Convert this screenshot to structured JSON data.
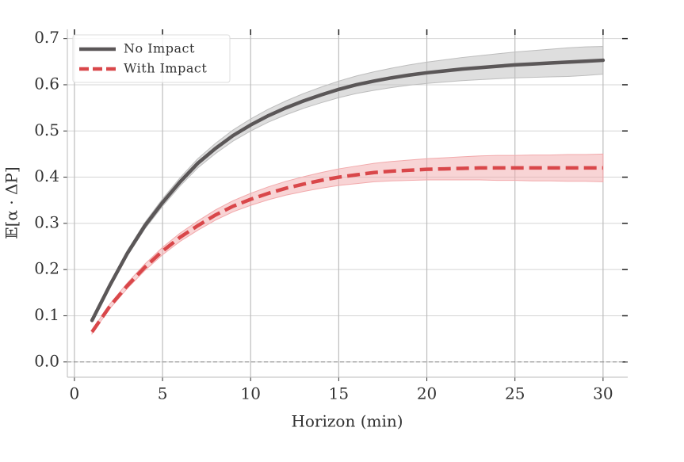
{
  "chart_data": {
    "type": "line",
    "x_label": "Horizon (min)",
    "y_label": "𝔼[α · ΔP]",
    "x": [
      1,
      2,
      3,
      4,
      5,
      6,
      7,
      8,
      9,
      10,
      11,
      12,
      13,
      14,
      15,
      16,
      17,
      18,
      19,
      20,
      21,
      22,
      23,
      24,
      25,
      26,
      27,
      28,
      29,
      30
    ],
    "series": [
      {
        "name": "No Impact",
        "color": "#5b5758",
        "band_color": "#bdbdbd",
        "dash": false,
        "values": [
          0.09,
          0.165,
          0.235,
          0.295,
          0.345,
          0.39,
          0.43,
          0.462,
          0.49,
          0.513,
          0.533,
          0.55,
          0.565,
          0.578,
          0.59,
          0.6,
          0.608,
          0.615,
          0.621,
          0.626,
          0.63,
          0.634,
          0.637,
          0.64,
          0.643,
          0.645,
          0.647,
          0.649,
          0.651,
          0.653
        ],
        "lower": [
          0.086,
          0.16,
          0.229,
          0.288,
          0.337,
          0.381,
          0.42,
          0.451,
          0.478,
          0.5,
          0.519,
          0.535,
          0.549,
          0.561,
          0.572,
          0.581,
          0.588,
          0.594,
          0.599,
          0.603,
          0.606,
          0.609,
          0.611,
          0.613,
          0.615,
          0.616,
          0.617,
          0.618,
          0.62,
          0.623
        ],
        "upper": [
          0.094,
          0.17,
          0.241,
          0.302,
          0.353,
          0.399,
          0.44,
          0.473,
          0.502,
          0.526,
          0.547,
          0.565,
          0.581,
          0.595,
          0.608,
          0.619,
          0.628,
          0.636,
          0.643,
          0.649,
          0.654,
          0.659,
          0.663,
          0.667,
          0.671,
          0.674,
          0.677,
          0.68,
          0.682,
          0.683
        ]
      },
      {
        "name": "With Impact",
        "color": "#d9474a",
        "band_color": "#f2a9ab",
        "dash": true,
        "values": [
          0.065,
          0.12,
          0.165,
          0.205,
          0.24,
          0.27,
          0.295,
          0.318,
          0.337,
          0.352,
          0.365,
          0.376,
          0.385,
          0.393,
          0.4,
          0.405,
          0.41,
          0.413,
          0.415,
          0.417,
          0.418,
          0.419,
          0.42,
          0.42,
          0.42,
          0.42,
          0.42,
          0.42,
          0.42,
          0.42
        ],
        "lower": [
          0.061,
          0.115,
          0.159,
          0.198,
          0.232,
          0.261,
          0.285,
          0.307,
          0.325,
          0.339,
          0.351,
          0.361,
          0.369,
          0.376,
          0.382,
          0.386,
          0.39,
          0.392,
          0.393,
          0.394,
          0.394,
          0.394,
          0.394,
          0.393,
          0.393,
          0.392,
          0.392,
          0.391,
          0.391,
          0.39
        ],
        "upper": [
          0.069,
          0.125,
          0.171,
          0.212,
          0.248,
          0.279,
          0.305,
          0.329,
          0.349,
          0.365,
          0.379,
          0.391,
          0.401,
          0.41,
          0.418,
          0.424,
          0.43,
          0.434,
          0.437,
          0.44,
          0.442,
          0.444,
          0.446,
          0.447,
          0.447,
          0.448,
          0.448,
          0.449,
          0.449,
          0.45
        ]
      }
    ],
    "xlim": [
      -0.4,
      31.4
    ],
    "ylim": [
      -0.033,
      0.72
    ],
    "xticks": [
      0,
      5,
      10,
      15,
      20,
      25,
      30
    ],
    "yticks": [
      {
        "value": 0,
        "label": "0.0"
      },
      0.1,
      0.2,
      0.3,
      0.4,
      0.5,
      0.6,
      0.7
    ],
    "grid": true,
    "legend": "upper left"
  }
}
